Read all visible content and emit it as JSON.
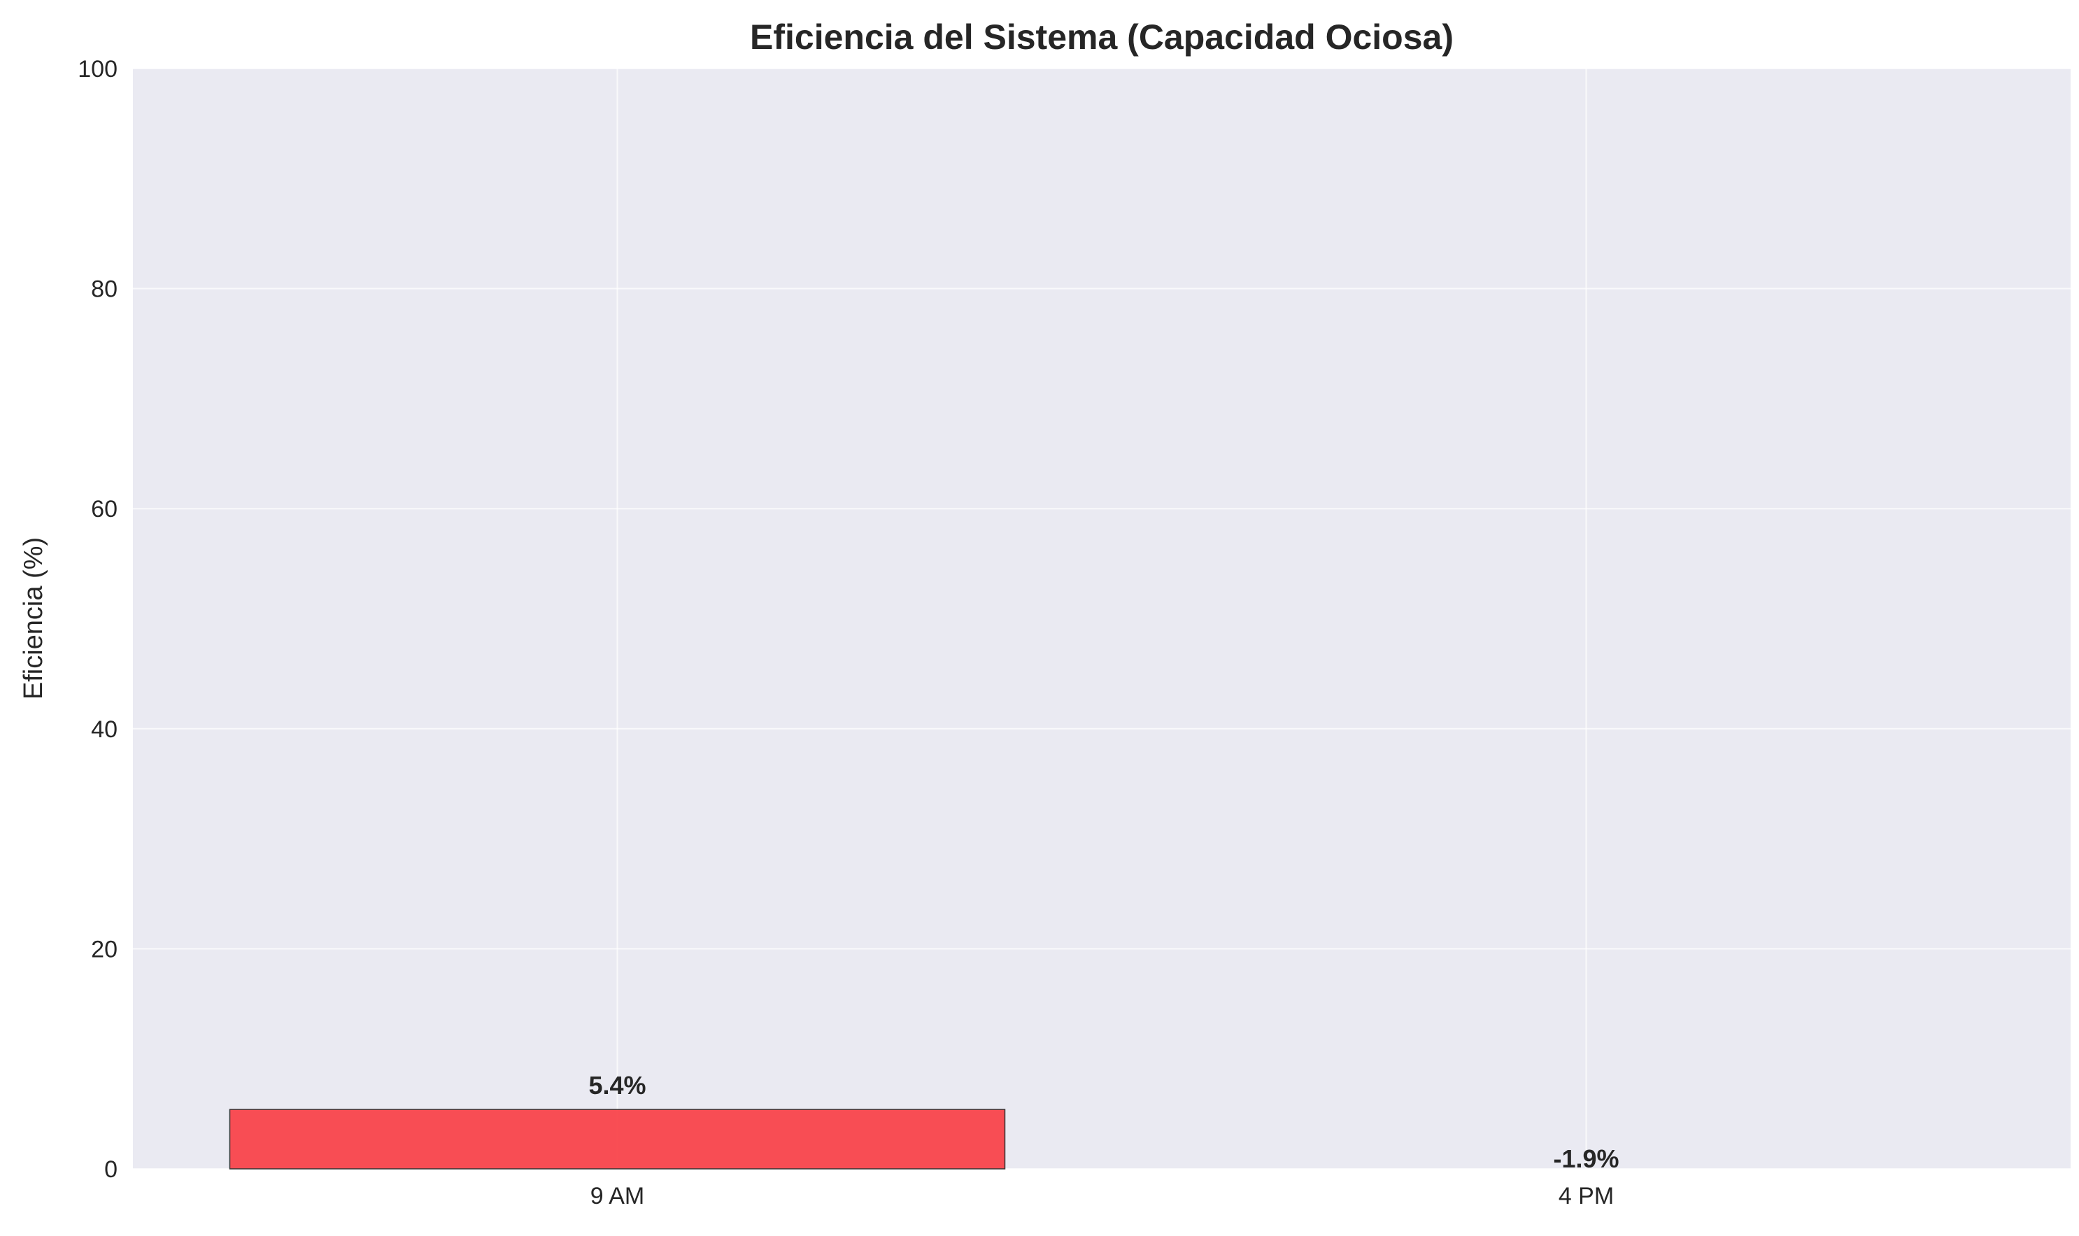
{
  "chart_data": {
    "type": "bar",
    "title": "Eficiencia del Sistema (Capacidad Ociosa)",
    "xlabel": "",
    "ylabel": "Eficiencia (%)",
    "categories": [
      "9 AM",
      "4 PM"
    ],
    "values": [
      5.4,
      -1.9
    ],
    "data_labels": [
      "5.4%",
      "-1.9%"
    ],
    "ylim": [
      0,
      100
    ],
    "yticks": [
      0,
      20,
      40,
      60,
      80,
      100
    ],
    "grid": true,
    "legend": "none",
    "colors": {
      "bar": "#f9454b",
      "bar_edge": "#333333",
      "plot_background": "#eaeaf2",
      "grid": "#ffffff"
    }
  }
}
